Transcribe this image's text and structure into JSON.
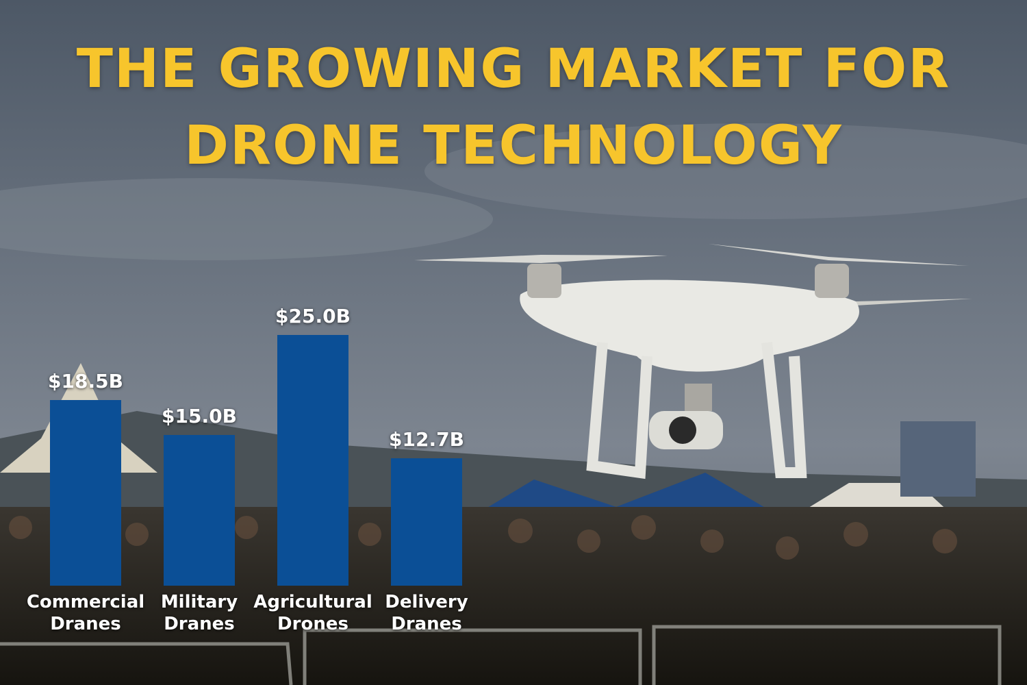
{
  "chart_data": {
    "type": "bar",
    "title": "THE GROWING MARKET FOR DRONE TECHNOLOGY",
    "categories": [
      "Commercial Dranes",
      "Military Dranes",
      "Agricultural Drones",
      "Delivery Dranes"
    ],
    "values": [
      18.5,
      15.0,
      25.0,
      12.7
    ],
    "value_labels": [
      "$18.5B",
      "$15.0B",
      "$25.0B",
      "$12.7B"
    ],
    "color": "#0b4f96"
  }
}
